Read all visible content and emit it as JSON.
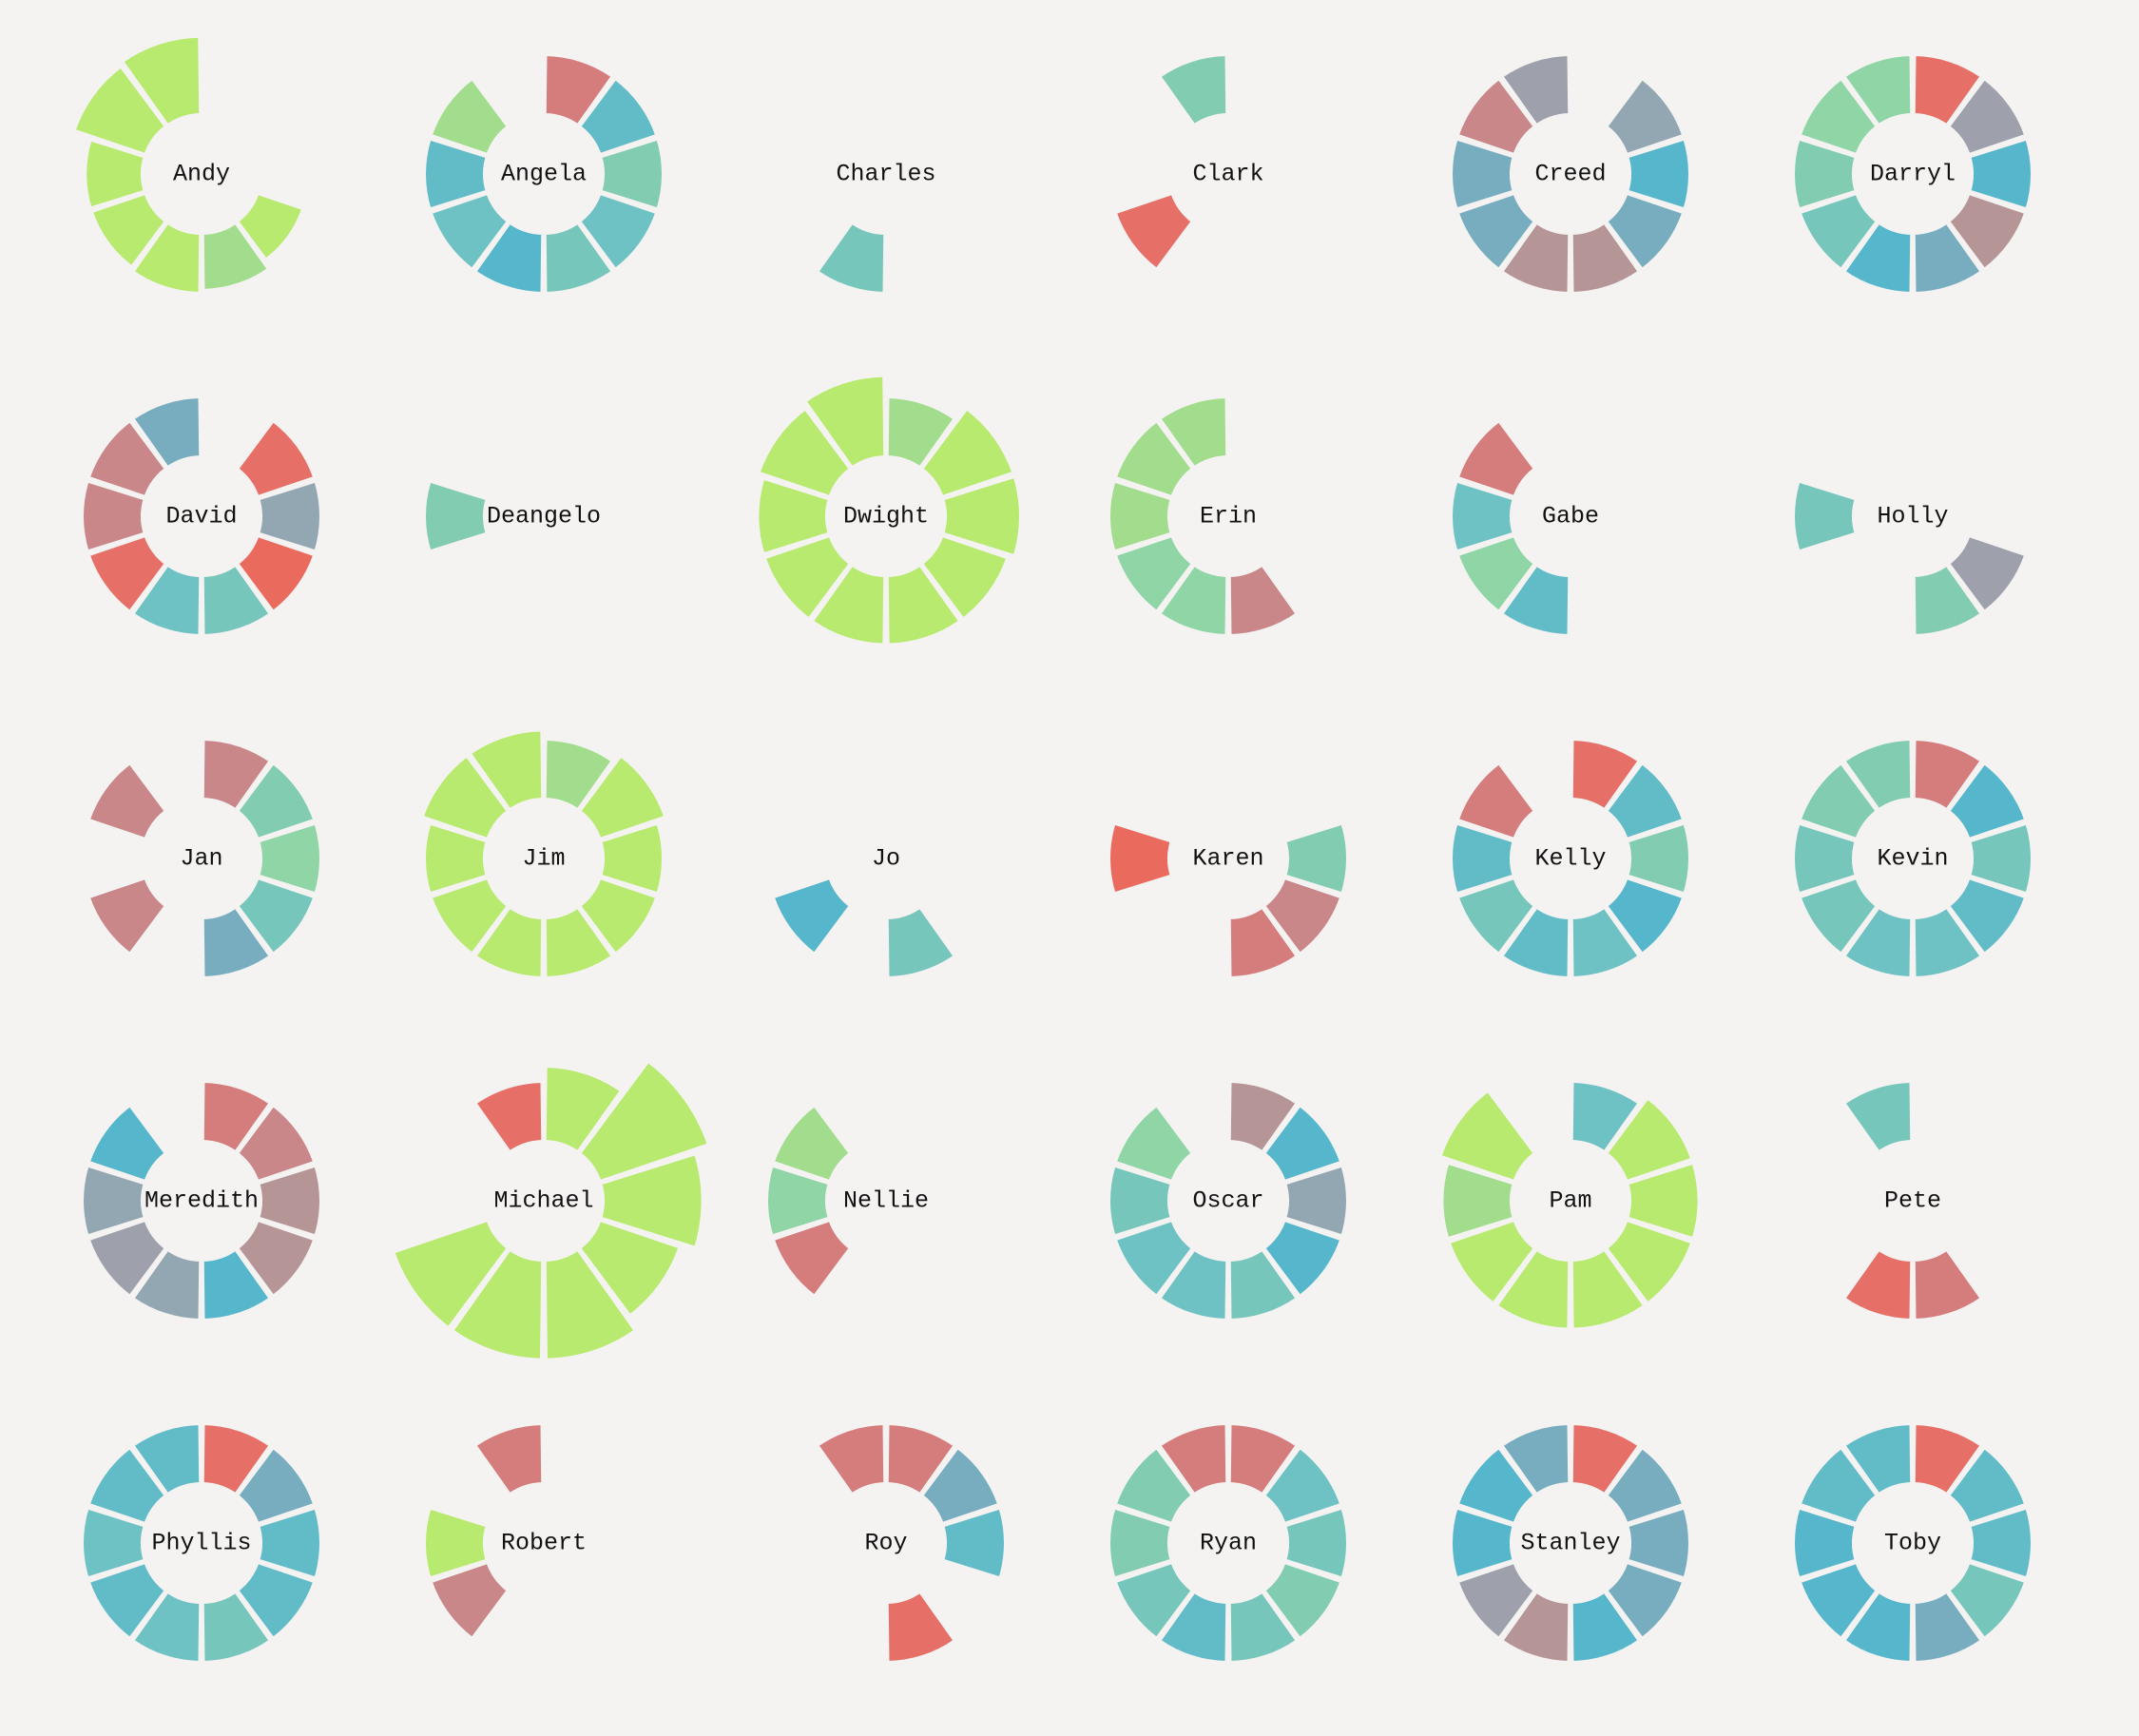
{
  "chart_data": {
    "type": "radial-bar-small-multiples",
    "background": "#f5f3f2",
    "segments_per_chart": 10,
    "palette": {
      "A": "#b8ea70",
      "B": "#a2dc8d",
      "C": "#8fd5a5",
      "D": "#82cdb1",
      "E": "#76c6bc",
      "F": "#6fc2c4",
      "G": "#62bcc8",
      "H": "#56b6cc",
      "I": "#78adc0",
      "J": "#93a7b3",
      "K": "#9ea0ac",
      "L": "#b69597",
      "M": "#c98789",
      "N": "#d57d7c",
      "O": "#e67068",
      "P": "#ea6b5e"
    },
    "charts": [
      {
        "name": "Andy",
        "segments": [
          null,
          null,
          null,
          [
            0.8,
            "A"
          ],
          [
            0.95,
            "B"
          ],
          [
            1.0,
            "A"
          ],
          [
            0.95,
            "A"
          ],
          [
            0.95,
            "A"
          ],
          [
            1.25,
            "A"
          ],
          [
            1.3,
            "A"
          ]
        ]
      },
      {
        "name": "Angela",
        "segments": [
          [
            1,
            "N"
          ],
          [
            1,
            "G"
          ],
          [
            1,
            "D"
          ],
          [
            1,
            "F"
          ],
          [
            1,
            "E"
          ],
          [
            1,
            "H"
          ],
          [
            1,
            "F"
          ],
          [
            1,
            "G"
          ],
          [
            1,
            "B"
          ],
          null
        ]
      },
      {
        "name": "Charles",
        "segments": [
          null,
          null,
          null,
          null,
          null,
          [
            1,
            "E"
          ],
          null,
          null,
          null,
          null
        ]
      },
      {
        "name": "Clark",
        "segments": [
          null,
          null,
          null,
          null,
          null,
          null,
          [
            1,
            "O"
          ],
          null,
          null,
          [
            1,
            "D"
          ]
        ]
      },
      {
        "name": "Creed",
        "segments": [
          null,
          [
            1,
            "J"
          ],
          [
            1,
            "H"
          ],
          [
            1,
            "I"
          ],
          [
            1,
            "L"
          ],
          [
            1,
            "L"
          ],
          [
            1,
            "I"
          ],
          [
            1,
            "I"
          ],
          [
            1,
            "M"
          ],
          [
            1,
            "K"
          ]
        ]
      },
      {
        "name": "Darryl",
        "segments": [
          [
            1,
            "O"
          ],
          [
            1,
            "K"
          ],
          [
            1,
            "H"
          ],
          [
            1,
            "L"
          ],
          [
            1,
            "I"
          ],
          [
            1,
            "H"
          ],
          [
            1,
            "E"
          ],
          [
            1,
            "D"
          ],
          [
            1,
            "C"
          ],
          [
            1,
            "C"
          ]
        ]
      },
      {
        "name": "David",
        "segments": [
          null,
          [
            1,
            "O"
          ],
          [
            1,
            "J"
          ],
          [
            1,
            "P"
          ],
          [
            1,
            "E"
          ],
          [
            1,
            "F"
          ],
          [
            1,
            "O"
          ],
          [
            1,
            "M"
          ],
          [
            1,
            "M"
          ],
          [
            1,
            "I"
          ]
        ]
      },
      {
        "name": "Deangelo",
        "segments": [
          null,
          null,
          null,
          null,
          null,
          null,
          null,
          [
            1,
            "D"
          ],
          null,
          null
        ]
      },
      {
        "name": "Dwight",
        "segments": [
          [
            1.0,
            "B"
          ],
          [
            1.25,
            "A"
          ],
          [
            1.25,
            "A"
          ],
          [
            1.15,
            "A"
          ],
          [
            1.15,
            "A"
          ],
          [
            1.15,
            "A"
          ],
          [
            1.15,
            "A"
          ],
          [
            1.15,
            "A"
          ],
          [
            1.25,
            "A"
          ],
          [
            1.35,
            "A"
          ]
        ]
      },
      {
        "name": "Erin",
        "segments": [
          null,
          null,
          null,
          null,
          [
            1,
            "M"
          ],
          [
            1,
            "C"
          ],
          [
            1,
            "C"
          ],
          [
            1,
            "B"
          ],
          [
            1,
            "B"
          ],
          [
            1,
            "B"
          ]
        ]
      },
      {
        "name": "Gabe",
        "segments": [
          null,
          null,
          null,
          null,
          null,
          [
            1,
            "G"
          ],
          [
            1,
            "C"
          ],
          [
            1,
            "F"
          ],
          [
            1,
            "N"
          ],
          null
        ]
      },
      {
        "name": "Holly",
        "segments": [
          null,
          null,
          null,
          [
            1,
            "K"
          ],
          [
            1,
            "D"
          ],
          null,
          null,
          [
            1,
            "E"
          ],
          null,
          null
        ]
      },
      {
        "name": "Jan",
        "segments": [
          [
            1,
            "M"
          ],
          [
            1,
            "D"
          ],
          [
            1,
            "C"
          ],
          [
            1,
            "E"
          ],
          [
            1,
            "I"
          ],
          null,
          [
            1,
            "M"
          ],
          null,
          [
            1,
            "M"
          ],
          null
        ]
      },
      {
        "name": "Jim",
        "segments": [
          [
            1.0,
            "B"
          ],
          [
            1.15,
            "A"
          ],
          [
            1.0,
            "A"
          ],
          [
            1.0,
            "A"
          ],
          [
            1.0,
            "A"
          ],
          [
            1.0,
            "A"
          ],
          [
            1.0,
            "A"
          ],
          [
            1.0,
            "A"
          ],
          [
            1.15,
            "A"
          ],
          [
            1.15,
            "A"
          ]
        ]
      },
      {
        "name": "Jo",
        "segments": [
          null,
          null,
          null,
          null,
          [
            1,
            "E"
          ],
          null,
          [
            1,
            "H"
          ],
          null,
          null,
          null
        ]
      },
      {
        "name": "Karen",
        "segments": [
          null,
          null,
          [
            1,
            "D"
          ],
          [
            1,
            "M"
          ],
          [
            1,
            "N"
          ],
          null,
          null,
          [
            1,
            "P"
          ],
          null,
          null
        ]
      },
      {
        "name": "Kelly",
        "segments": [
          [
            1,
            "O"
          ],
          [
            1,
            "G"
          ],
          [
            1,
            "D"
          ],
          [
            1,
            "H"
          ],
          [
            1,
            "F"
          ],
          [
            1,
            "G"
          ],
          [
            1,
            "E"
          ],
          [
            1,
            "G"
          ],
          [
            1,
            "N"
          ],
          null
        ]
      },
      {
        "name": "Kevin",
        "segments": [
          [
            1,
            "N"
          ],
          [
            1,
            "H"
          ],
          [
            1,
            "E"
          ],
          [
            1,
            "G"
          ],
          [
            1,
            "F"
          ],
          [
            1,
            "F"
          ],
          [
            1,
            "E"
          ],
          [
            1,
            "E"
          ],
          [
            1,
            "D"
          ],
          [
            1,
            "D"
          ]
        ]
      },
      {
        "name": "Meredith",
        "segments": [
          [
            1,
            "N"
          ],
          [
            1,
            "M"
          ],
          [
            1,
            "L"
          ],
          [
            1,
            "L"
          ],
          [
            1,
            "H"
          ],
          [
            1,
            "J"
          ],
          [
            1,
            "K"
          ],
          [
            1,
            "J"
          ],
          [
            1,
            "H"
          ],
          null
        ]
      },
      {
        "name": "Michael",
        "segments": [
          [
            1.25,
            "A"
          ],
          [
            1.9,
            "A"
          ],
          [
            1.65,
            "A"
          ],
          [
            1.4,
            "A"
          ],
          [
            1.65,
            "A"
          ],
          [
            1.65,
            "A"
          ],
          [
            1.65,
            "A"
          ],
          null,
          null,
          [
            1.0,
            "O"
          ]
        ]
      },
      {
        "name": "Nellie",
        "segments": [
          null,
          null,
          null,
          null,
          null,
          null,
          [
            1,
            "N"
          ],
          [
            1,
            "C"
          ],
          [
            1,
            "B"
          ],
          null
        ]
      },
      {
        "name": "Oscar",
        "segments": [
          [
            1,
            "L"
          ],
          [
            1,
            "H"
          ],
          [
            1,
            "J"
          ],
          [
            1,
            "H"
          ],
          [
            1,
            "E"
          ],
          [
            1,
            "F"
          ],
          [
            1,
            "F"
          ],
          [
            1,
            "E"
          ],
          [
            1,
            "C"
          ],
          null
        ]
      },
      {
        "name": "Pam",
        "segments": [
          [
            1.0,
            "F"
          ],
          [
            1.15,
            "A"
          ],
          [
            1.15,
            "A"
          ],
          [
            1.15,
            "A"
          ],
          [
            1.15,
            "A"
          ],
          [
            1.15,
            "A"
          ],
          [
            1.15,
            "A"
          ],
          [
            1.15,
            "B"
          ],
          [
            1.3,
            "A"
          ],
          null
        ]
      },
      {
        "name": "Pete",
        "segments": [
          null,
          null,
          null,
          null,
          [
            1,
            "N"
          ],
          [
            1,
            "O"
          ],
          null,
          null,
          null,
          [
            1,
            "E"
          ]
        ]
      },
      {
        "name": "Phyllis",
        "segments": [
          [
            1,
            "O"
          ],
          [
            1,
            "I"
          ],
          [
            1,
            "G"
          ],
          [
            1,
            "G"
          ],
          [
            1,
            "E"
          ],
          [
            1,
            "F"
          ],
          [
            1,
            "G"
          ],
          [
            1,
            "F"
          ],
          [
            1,
            "G"
          ],
          [
            1,
            "G"
          ]
        ]
      },
      {
        "name": "Robert",
        "segments": [
          null,
          null,
          null,
          null,
          null,
          null,
          [
            1,
            "M"
          ],
          [
            1,
            "A"
          ],
          null,
          [
            1,
            "N"
          ]
        ]
      },
      {
        "name": "Roy",
        "segments": [
          [
            1,
            "N"
          ],
          [
            1,
            "I"
          ],
          [
            1,
            "G"
          ],
          null,
          [
            1,
            "O"
          ],
          null,
          null,
          null,
          null,
          [
            1,
            "N"
          ]
        ]
      },
      {
        "name": "Ryan",
        "segments": [
          [
            1,
            "N"
          ],
          [
            1,
            "F"
          ],
          [
            1,
            "E"
          ],
          [
            1,
            "D"
          ],
          [
            1,
            "E"
          ],
          [
            1,
            "G"
          ],
          [
            1,
            "E"
          ],
          [
            1,
            "D"
          ],
          [
            1,
            "D"
          ],
          [
            1,
            "N"
          ]
        ]
      },
      {
        "name": "Stanley",
        "segments": [
          [
            1,
            "O"
          ],
          [
            1,
            "I"
          ],
          [
            1,
            "I"
          ],
          [
            1,
            "I"
          ],
          [
            1,
            "H"
          ],
          [
            1,
            "L"
          ],
          [
            1,
            "K"
          ],
          [
            1,
            "H"
          ],
          [
            1,
            "H"
          ],
          [
            1,
            "I"
          ]
        ]
      },
      {
        "name": "Toby",
        "segments": [
          [
            1,
            "O"
          ],
          [
            1,
            "G"
          ],
          [
            1,
            "G"
          ],
          [
            1,
            "E"
          ],
          [
            1,
            "I"
          ],
          [
            1,
            "H"
          ],
          [
            1,
            "H"
          ],
          [
            1,
            "H"
          ],
          [
            1,
            "G"
          ],
          [
            1,
            "G"
          ]
        ]
      }
    ]
  }
}
